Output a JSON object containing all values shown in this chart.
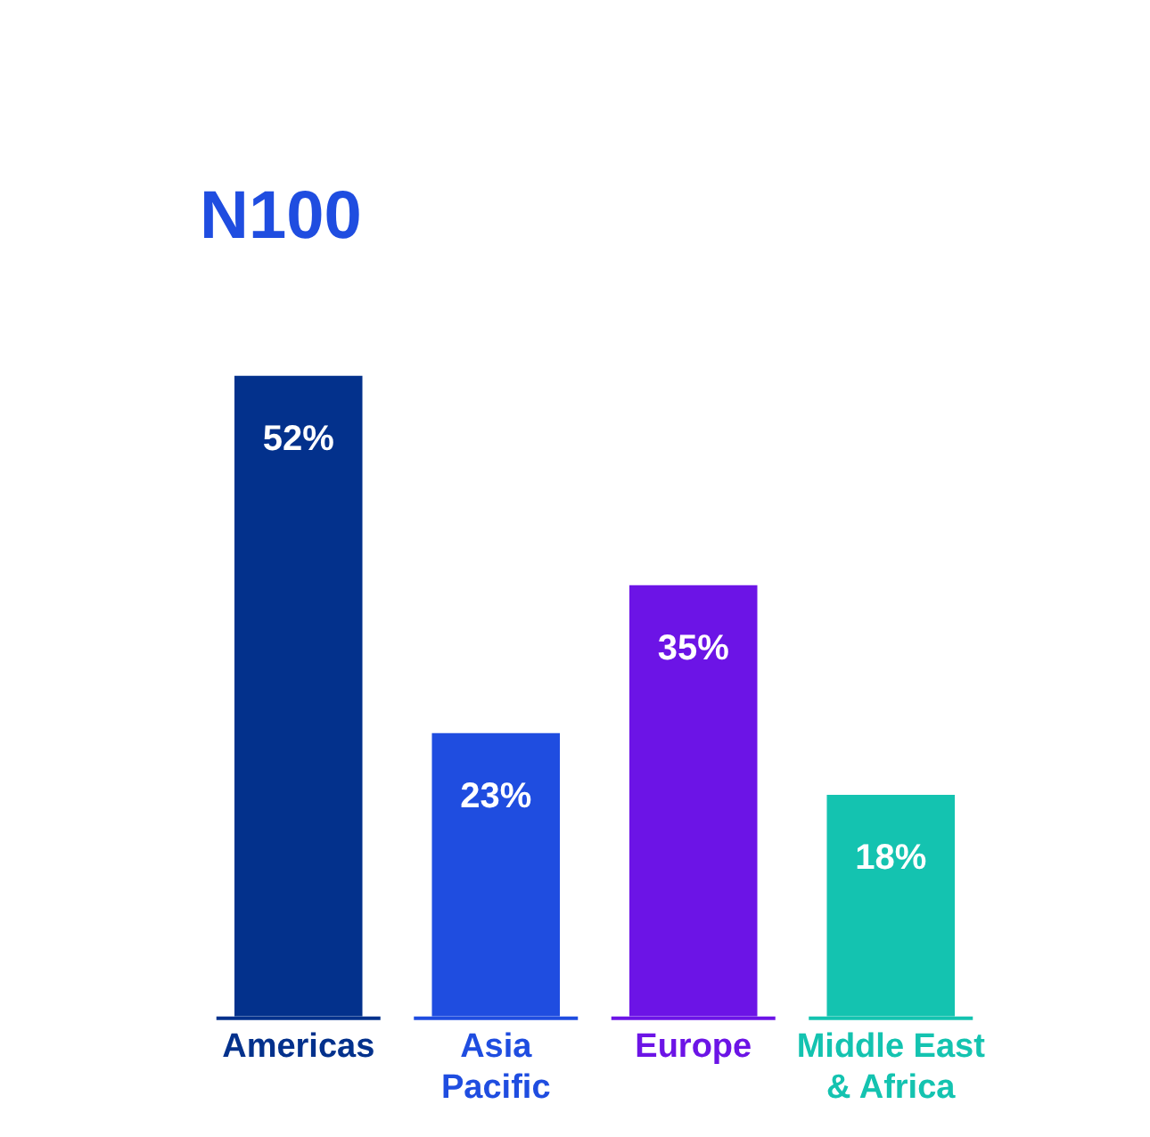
{
  "chart_data": {
    "type": "bar",
    "title": "N100",
    "categories": [
      "Americas",
      "Asia Pacific",
      "Europe",
      "Middle East & Africa"
    ],
    "values": [
      52,
      23,
      35,
      18
    ],
    "colors": [
      "#03318c",
      "#1f4de0",
      "#6c14e6",
      "#14c3b0"
    ],
    "value_labels": [
      "52%",
      "23%",
      "35%",
      "18%"
    ],
    "legend": false,
    "grid": false
  }
}
